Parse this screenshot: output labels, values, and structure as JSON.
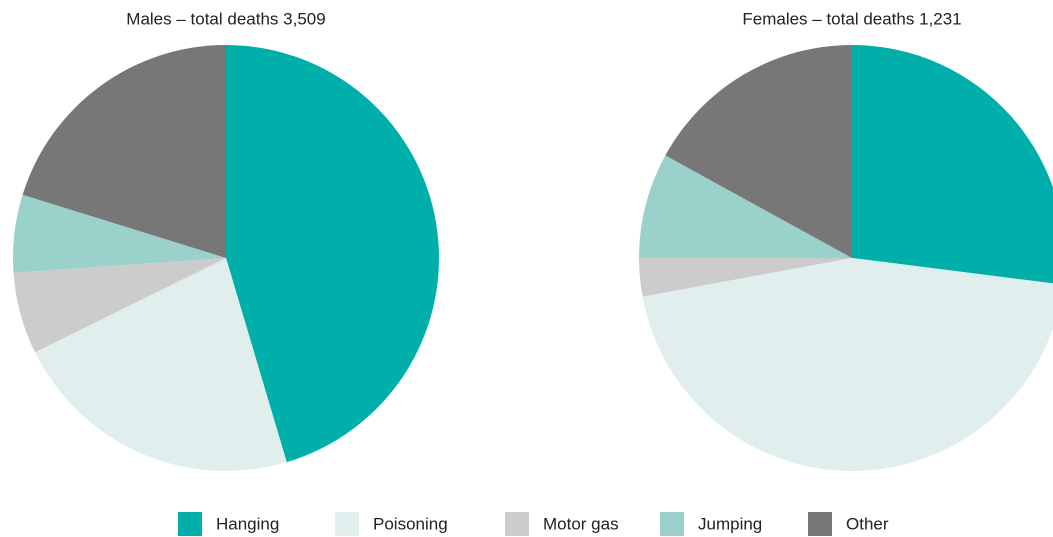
{
  "chart_data": [
    {
      "type": "pie",
      "title": "Males – total deaths 3,509",
      "values": [
        45.4,
        22.3,
        6.2,
        5.9,
        20.2
      ]
    },
    {
      "type": "pie",
      "title": "Females – total deaths 1,231",
      "values": [
        27.0,
        45.1,
        2.9,
        8.0,
        17.0
      ]
    }
  ],
  "legend": {
    "labels": [
      "Hanging",
      "Poisoning",
      "Motor gas",
      "Jumping",
      "Other"
    ],
    "colors": [
      "#00afa9",
      "#e1eeee",
      "#cccccc",
      "#9bd1cb",
      "#777777"
    ]
  }
}
